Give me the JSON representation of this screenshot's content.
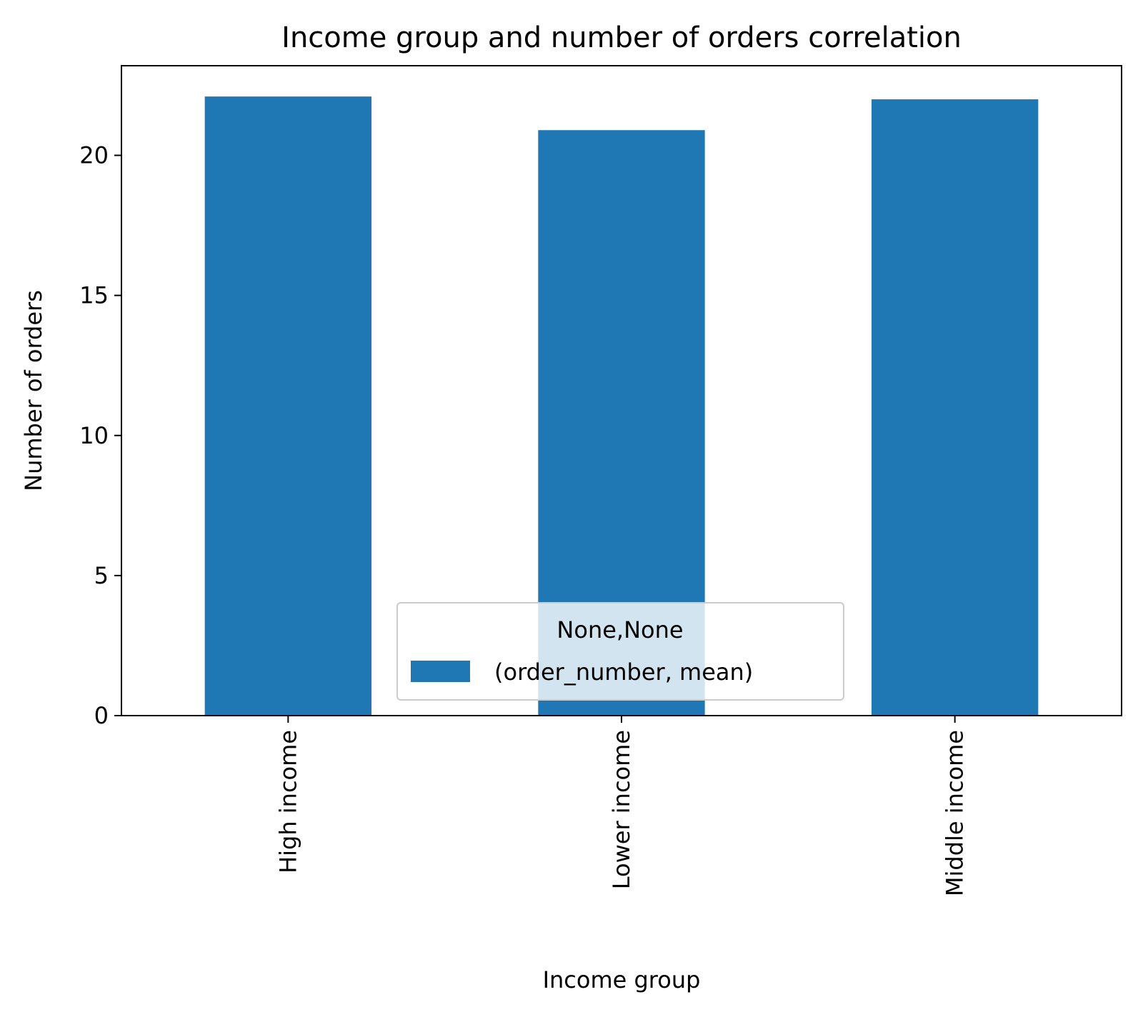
{
  "chart_data": {
    "type": "bar",
    "title": "Income group and number of orders correlation",
    "xlabel": "Income group",
    "ylabel": "Number of orders",
    "categories": [
      "High income",
      "Lower income",
      "Middle income"
    ],
    "series": [
      {
        "name": "(order_number, mean)",
        "values": [
          22.1,
          20.9,
          22.0
        ],
        "color": "#1f77b4"
      }
    ],
    "legend": {
      "title": "None,None",
      "placement": "lower center"
    },
    "ylim": [
      0,
      23.2
    ],
    "yticks": [
      0,
      5,
      10,
      15,
      20
    ],
    "ytick_labels": [
      "0",
      "5",
      "10",
      "15",
      "20"
    ],
    "grid": false
  }
}
